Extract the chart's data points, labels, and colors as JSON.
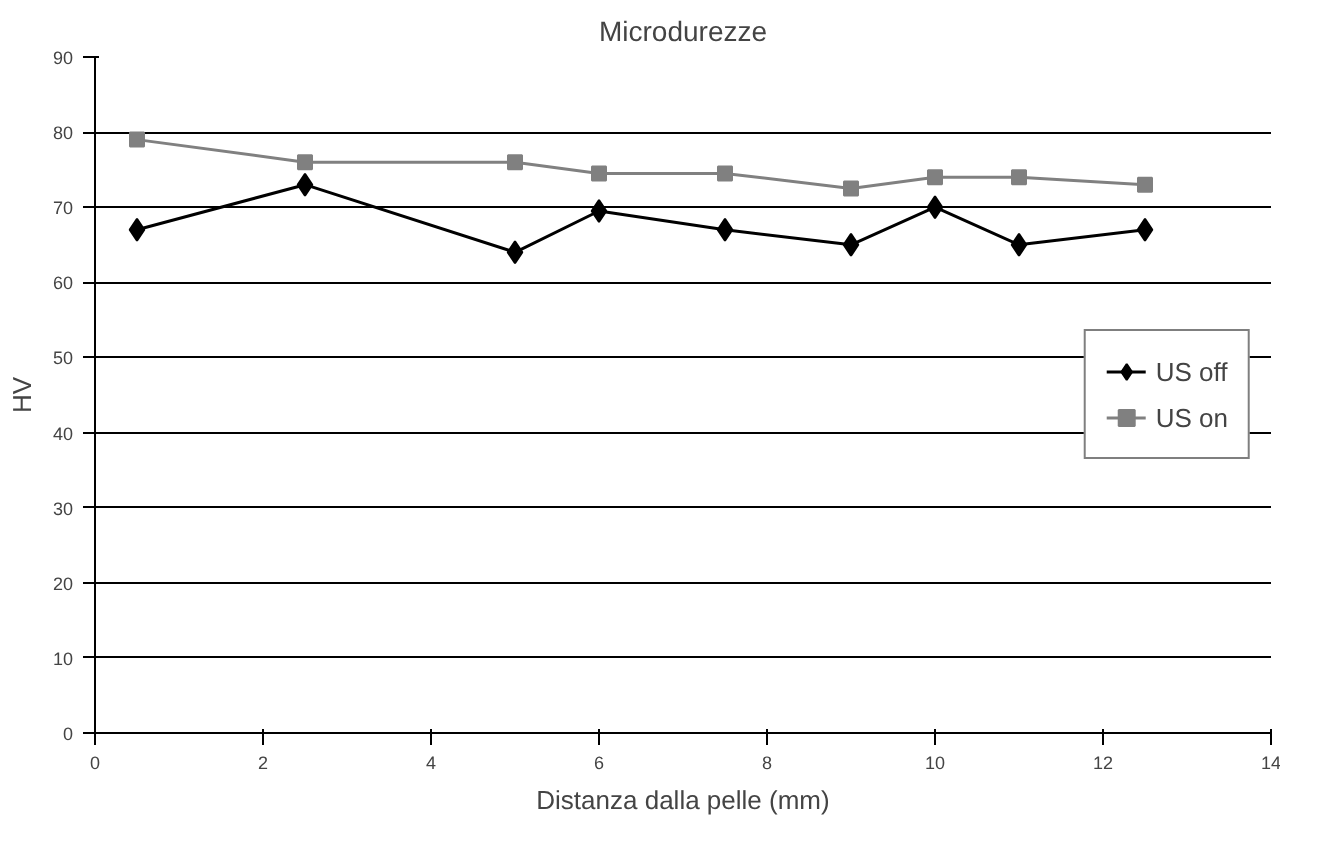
{
  "chart_data": {
    "type": "line",
    "title": "Microdurezze",
    "xlabel": "Distanza dalla pelle (mm)",
    "ylabel": "HV",
    "x": [
      0.5,
      2.5,
      5,
      6,
      7.5,
      9,
      10,
      11,
      12.5
    ],
    "series": [
      {
        "name": "US off",
        "color": "#000000",
        "marker": "diamond",
        "values": [
          67,
          73,
          64,
          69.5,
          67,
          65,
          70,
          65,
          67
        ]
      },
      {
        "name": "US on",
        "color": "#808080",
        "marker": "square",
        "values": [
          79,
          76,
          76,
          74.5,
          74.5,
          72.5,
          74,
          74,
          73
        ]
      }
    ],
    "xlim": [
      0,
      14
    ],
    "xticks": [
      0,
      2,
      4,
      6,
      8,
      10,
      12,
      14
    ],
    "ylim": [
      0,
      90
    ],
    "yticks": [
      0,
      10,
      20,
      30,
      40,
      50,
      60,
      70,
      80,
      90
    ],
    "grid": "y",
    "legend": "right",
    "line_style": "solid"
  }
}
